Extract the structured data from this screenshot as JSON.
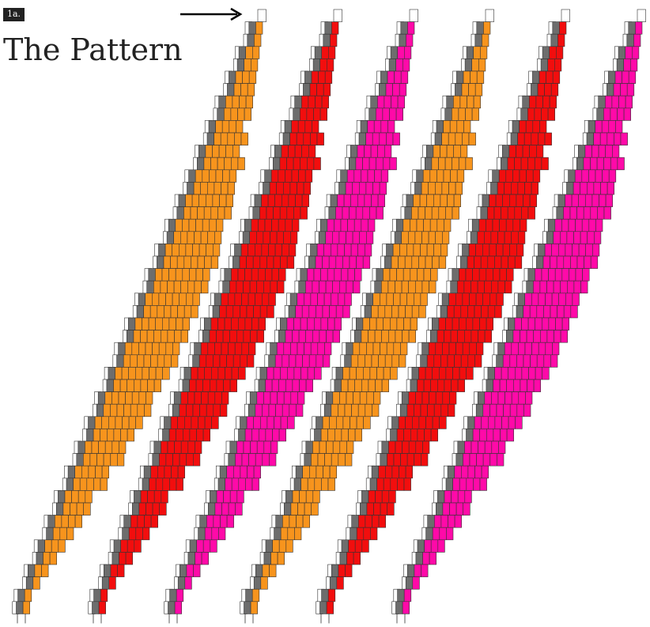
{
  "tag_label": "1a.",
  "title": "The Pattern",
  "colors": {
    "orange": "#f7941d",
    "red": "#f20e0e",
    "pink": "#ff0aa8",
    "gray": "#6d6d6d",
    "white": "#ffffff",
    "outline": "#333333",
    "arrow": "#000000"
  },
  "strips": [
    {
      "name": "strip-1",
      "color": "orange"
    },
    {
      "name": "strip-2",
      "color": "red"
    },
    {
      "name": "strip-3",
      "color": "pink"
    },
    {
      "name": "strip-4",
      "color": "orange"
    },
    {
      "name": "strip-5",
      "color": "red"
    },
    {
      "name": "strip-6",
      "color": "pink"
    }
  ],
  "icons": {
    "arrow": "arrow-right-icon"
  }
}
